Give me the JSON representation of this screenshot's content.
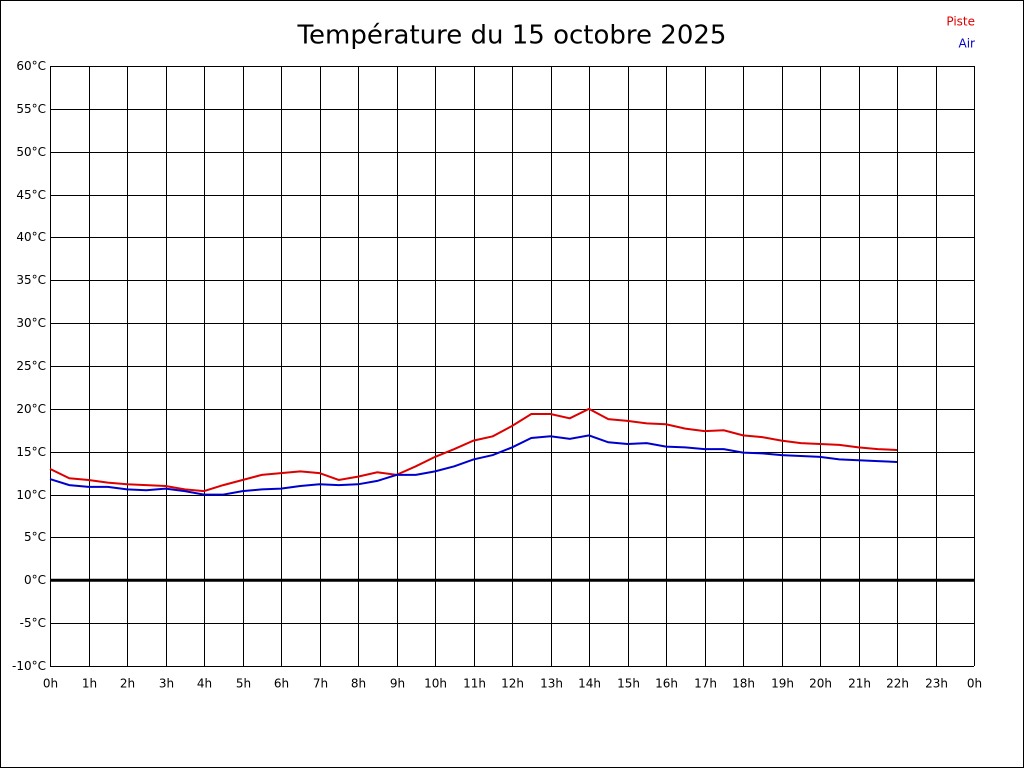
{
  "chart_data": {
    "type": "line",
    "title": "Température du 15 octobre 2025",
    "x": [
      0,
      0.5,
      1,
      1.5,
      2,
      2.5,
      3,
      3.5,
      4,
      4.5,
      5,
      5.5,
      6,
      6.5,
      7,
      7.5,
      8,
      8.5,
      9,
      9.5,
      10,
      10.5,
      11,
      11.5,
      12,
      12.5,
      13,
      13.5,
      14,
      14.5,
      15,
      15.5,
      16,
      16.5,
      17,
      17.5,
      18,
      18.5,
      19,
      19.5,
      20,
      20.5,
      21,
      21.5,
      22
    ],
    "series": [
      {
        "name": "Piste",
        "color": "#dd0000",
        "values": [
          13,
          11.9,
          11.7,
          11.4,
          11.2,
          11.1,
          11.0,
          10.6,
          10.4,
          11.1,
          11.7,
          12.3,
          12.5,
          12.7,
          12.5,
          11.7,
          12.1,
          12.6,
          12.3,
          13.3,
          14.4,
          15.3,
          16.3,
          16.8,
          18.0,
          19.4,
          19.4,
          18.9,
          20.0,
          18.8,
          18.6,
          18.3,
          18.2,
          17.7,
          17.4,
          17.5,
          16.9,
          16.7,
          16.3,
          16.0,
          15.9,
          15.8,
          15.5,
          15.3,
          15.2
        ]
      },
      {
        "name": "Air",
        "color": "#0000cc",
        "values": [
          11.8,
          11.1,
          10.9,
          10.9,
          10.6,
          10.5,
          10.7,
          10.4,
          10.0,
          10.0,
          10.4,
          10.6,
          10.7,
          11.0,
          11.2,
          11.1,
          11.2,
          11.6,
          12.3,
          12.3,
          12.7,
          13.3,
          14.1,
          14.6,
          15.5,
          16.6,
          16.8,
          16.5,
          16.9,
          16.1,
          15.9,
          16.0,
          15.6,
          15.5,
          15.3,
          15.3,
          14.9,
          14.8,
          14.6,
          14.5,
          14.4,
          14.1,
          14.0,
          13.9,
          13.8
        ]
      }
    ],
    "xlim": [
      0,
      24
    ],
    "xticks": [
      {
        "value": 0,
        "label": "0h"
      },
      {
        "value": 1,
        "label": "1h"
      },
      {
        "value": 2,
        "label": "2h"
      },
      {
        "value": 3,
        "label": "3h"
      },
      {
        "value": 4,
        "label": "4h"
      },
      {
        "value": 5,
        "label": "5h"
      },
      {
        "value": 6,
        "label": "6h"
      },
      {
        "value": 7,
        "label": "7h"
      },
      {
        "value": 8,
        "label": "8h"
      },
      {
        "value": 9,
        "label": "9h"
      },
      {
        "value": 10,
        "label": "10h"
      },
      {
        "value": 11,
        "label": "11h"
      },
      {
        "value": 12,
        "label": "12h"
      },
      {
        "value": 13,
        "label": "13h"
      },
      {
        "value": 14,
        "label": "14h"
      },
      {
        "value": 15,
        "label": "15h"
      },
      {
        "value": 16,
        "label": "16h"
      },
      {
        "value": 17,
        "label": "17h"
      },
      {
        "value": 18,
        "label": "18h"
      },
      {
        "value": 19,
        "label": "19h"
      },
      {
        "value": 20,
        "label": "20h"
      },
      {
        "value": 21,
        "label": "21h"
      },
      {
        "value": 22,
        "label": "22h"
      },
      {
        "value": 23,
        "label": "23h"
      },
      {
        "value": 24,
        "label": "0h"
      }
    ],
    "ylim": [
      -10,
      60
    ],
    "yticks": [
      {
        "value": -10,
        "label": "-10°C"
      },
      {
        "value": -5,
        "label": "-5°C"
      },
      {
        "value": 0,
        "label": "0°C"
      },
      {
        "value": 5,
        "label": "5°C"
      },
      {
        "value": 10,
        "label": "10°C"
      },
      {
        "value": 15,
        "label": "15°C"
      },
      {
        "value": 20,
        "label": "20°C"
      },
      {
        "value": 25,
        "label": "25°C"
      },
      {
        "value": 30,
        "label": "30°C"
      },
      {
        "value": 35,
        "label": "35°C"
      },
      {
        "value": 40,
        "label": "40°C"
      },
      {
        "value": 45,
        "label": "45°C"
      },
      {
        "value": 50,
        "label": "50°C"
      },
      {
        "value": 55,
        "label": "55°C"
      },
      {
        "value": 60,
        "label": "60°C"
      }
    ],
    "grid": true
  }
}
